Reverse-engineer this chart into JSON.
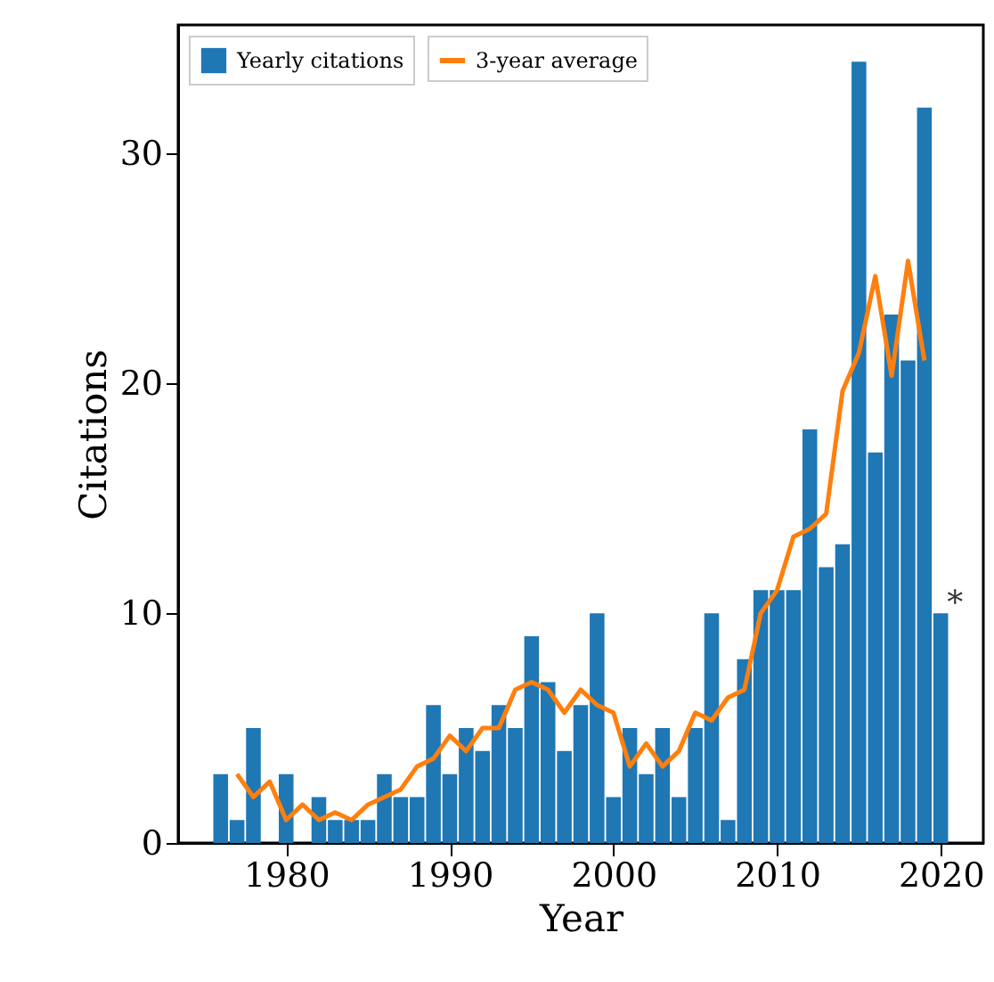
{
  "chart_data": {
    "type": "bar",
    "xlabel": "Year",
    "ylabel": "Citations",
    "xlim": [
      1973.4,
      2022.6
    ],
    "xticks": [
      1980,
      1990,
      2000,
      2010,
      2020
    ],
    "ylim": [
      0,
      35.6
    ],
    "yticks": [
      0,
      10,
      20,
      30
    ],
    "grid": false,
    "legend": "top left",
    "series": [
      {
        "type": "line",
        "name": "3-year average",
        "color": "#ff7f0e",
        "x": [
          1977,
          1978,
          1979,
          1980,
          1981,
          1982,
          1983,
          1984,
          1985,
          1986,
          1987,
          1988,
          1989,
          1990,
          1991,
          1992,
          1993,
          1994,
          1995,
          1996,
          1997,
          1998,
          1999,
          2000,
          2001,
          2002,
          2003,
          2004,
          2005,
          2006,
          2007,
          2008,
          2009,
          2010,
          2011,
          2012,
          2013,
          2014,
          2015,
          2016,
          2017,
          2018,
          2019
        ],
        "values": [
          3,
          2,
          2.67,
          1,
          1.67,
          1,
          1.33,
          1,
          1.67,
          2,
          2.33,
          3.33,
          3.67,
          4.67,
          4,
          5,
          5,
          6.67,
          7,
          6.67,
          5.67,
          6.67,
          6,
          5.67,
          3.33,
          4.33,
          3.33,
          4,
          5.67,
          5.33,
          6.33,
          6.67,
          10,
          11,
          13.33,
          13.67,
          14.33,
          19.67,
          21.33,
          24.67,
          20.33,
          25.33,
          21
        ]
      },
      {
        "name": "Yearly citations",
        "color": "#1f77b4",
        "x": [
          1976,
          1977,
          1978,
          1979,
          1980,
          1981,
          1982,
          1983,
          1984,
          1985,
          1986,
          1987,
          1988,
          1989,
          1990,
          1991,
          1992,
          1993,
          1994,
          1995,
          1996,
          1997,
          1998,
          1999,
          2000,
          2001,
          2002,
          2003,
          2004,
          2005,
          2006,
          2007,
          2008,
          2009,
          2010,
          2011,
          2012,
          2013,
          2014,
          2015,
          2016,
          2017,
          2018,
          2019,
          2020
        ],
        "values": [
          3,
          1,
          5,
          0,
          3,
          0,
          2,
          1,
          1,
          1,
          3,
          2,
          2,
          6,
          3,
          5,
          4,
          6,
          5,
          9,
          7,
          4,
          6,
          10,
          2,
          5,
          3,
          5,
          2,
          5,
          10,
          1,
          8,
          11,
          11,
          11,
          18,
          12,
          13,
          34,
          17,
          23,
          21,
          32,
          10
        ]
      }
    ],
    "annotations": [
      {
        "text": "*",
        "x": 2020,
        "y": 10
      }
    ]
  }
}
